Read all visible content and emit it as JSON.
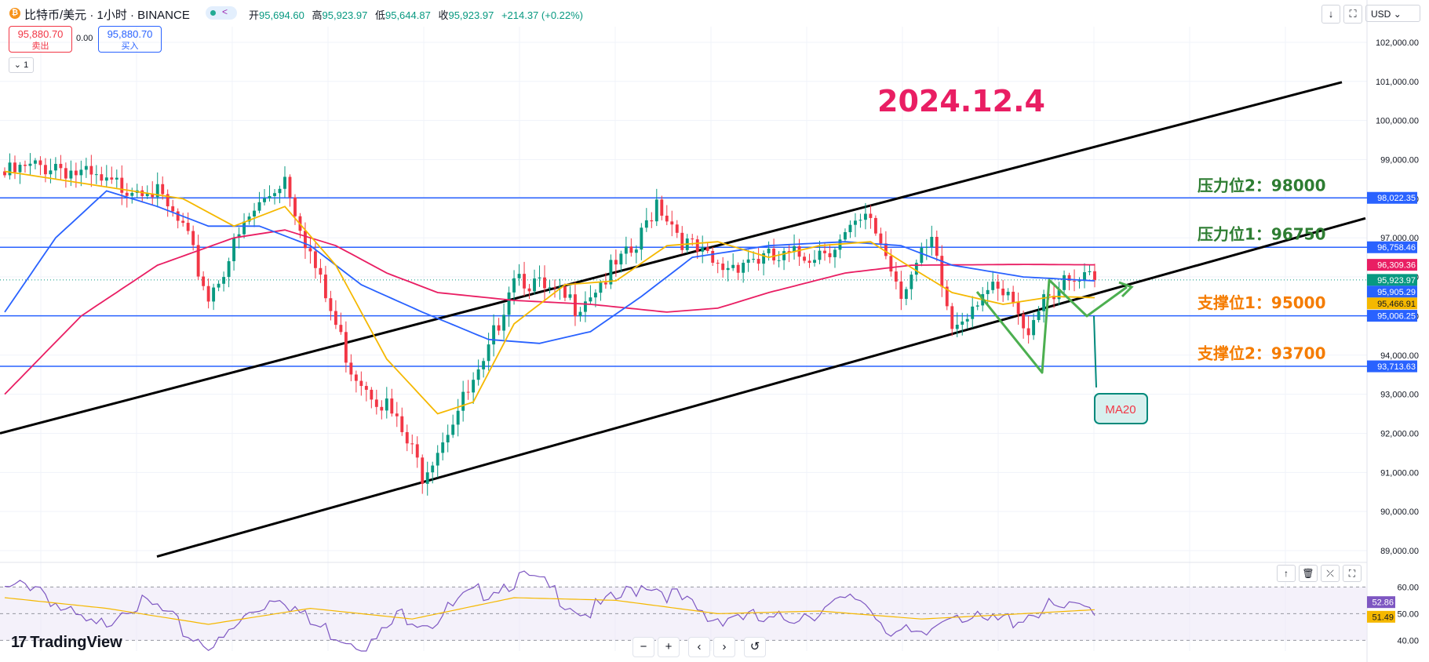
{
  "toolbar": {
    "symbol_icon": "bitcoin-icon",
    "symbol_icon_glyph": "₿",
    "symbol_title": "比特币/美元 · 1小时 · BINANCE",
    "ohlc": {
      "open_label": "开",
      "open": "95,694.60",
      "high_label": "高",
      "high": "95,923.97",
      "low_label": "低",
      "low": "95,644.87",
      "close_label": "收",
      "close": "95,923.97",
      "change": "+214.37 (+0.22%)"
    },
    "sell_price": "95,880.70",
    "sell_label": "卖出",
    "spread": "0.00",
    "buy_price": "95,880.70",
    "buy_label": "买入",
    "collapse_label": "1",
    "currency": "USD",
    "download_glyph": "↓",
    "fullscreen_glyph": "⛶",
    "camera_glyph": "⛶"
  },
  "rsi_controls": {
    "up": "↑",
    "delete": "🗑",
    "collapse": "⤫",
    "maximize": "⛶"
  },
  "nav": {
    "zoom_out": "−",
    "zoom_in": "+",
    "left": "‹",
    "right": "›",
    "reset": "↺"
  },
  "brand": "TradingView",
  "brand_mark": "17",
  "colors": {
    "up": "#089981",
    "down": "#f23645",
    "ma_short": "#f5b800",
    "ma_mid": "#2962ff",
    "ma_long": "#e91e63",
    "level_line": "#2962ff",
    "trend_line": "#000000",
    "annotation_green": "#4caf50",
    "resistance_text": "#2e7d32",
    "support_text": "#f57c00",
    "date_text": "#e91e63",
    "rsi": "#7e57c2",
    "rsi_ma": "#f5b800"
  },
  "chart_data": {
    "type": "candlestick",
    "title": "2024.12.4",
    "ylim": [
      88800,
      102400
    ],
    "y_ticks": [
      "102,000.00",
      "101,000.00",
      "100,000.00",
      "99,000.00",
      "98,000.00",
      "97,000.00",
      "96,000.00",
      "95,000.00",
      "94,000.00",
      "93,000.00",
      "92,000.00",
      "91,000.00",
      "90,000.00",
      "89,000.00"
    ],
    "price_labels": [
      {
        "value": 98022.35,
        "text": "98,022.35",
        "color": "#2962ff"
      },
      {
        "value": 96758.46,
        "text": "96,758.46",
        "color": "#2962ff"
      },
      {
        "value": 96309.36,
        "text": "96,309.36",
        "color": "#e91e63"
      },
      {
        "value": 95923.97,
        "text": "95,923.97",
        "color": "#089981"
      },
      {
        "value": 95905.29,
        "text": "95,905.29",
        "color": "#2962ff"
      },
      {
        "value": 95466.91,
        "text": "95,466.91",
        "color": "#f5b800"
      },
      {
        "value": 95006.25,
        "text": "95,006.25",
        "color": "#2962ff"
      },
      {
        "value": 93713.63,
        "text": "93,713.63",
        "color": "#2962ff"
      }
    ],
    "horizontal_levels": [
      98022.35,
      96758.46,
      95006.25,
      93713.63
    ],
    "last_price": 95923.97,
    "annotations": [
      {
        "text": "压力位2：98000",
        "value": 98000,
        "kind": "resistance"
      },
      {
        "text": "压力位1：96750",
        "value": 96750,
        "kind": "resistance"
      },
      {
        "text": "支撑位1：95000",
        "value": 95000,
        "kind": "support"
      },
      {
        "text": "支撑位2：93700",
        "value": 93700,
        "kind": "support"
      }
    ],
    "callout": "MA20",
    "channel": {
      "upper": [
        [
          0,
          92000
        ],
        [
          1710,
          100980
        ]
      ],
      "lower": [
        [
          200,
          88850
        ],
        [
          1740,
          97500
        ]
      ]
    },
    "anchors": [
      {
        "bar": 0,
        "price": 98600
      },
      {
        "bar": 10,
        "price": 98900
      },
      {
        "bar": 20,
        "price": 98300
      },
      {
        "bar": 28,
        "price": 98400
      },
      {
        "bar": 35,
        "price": 97200
      },
      {
        "bar": 40,
        "price": 95500
      },
      {
        "bar": 48,
        "price": 97500
      },
      {
        "bar": 55,
        "price": 98600
      },
      {
        "bar": 62,
        "price": 95800
      },
      {
        "bar": 68,
        "price": 93700
      },
      {
        "bar": 75,
        "price": 92700
      },
      {
        "bar": 82,
        "price": 91000
      },
      {
        "bar": 88,
        "price": 92400
      },
      {
        "bar": 94,
        "price": 93600
      },
      {
        "bar": 100,
        "price": 96200
      },
      {
        "bar": 106,
        "price": 95600
      },
      {
        "bar": 112,
        "price": 95300
      },
      {
        "bar": 118,
        "price": 96000
      },
      {
        "bar": 124,
        "price": 96700
      },
      {
        "bar": 128,
        "price": 98000
      },
      {
        "bar": 134,
        "price": 96800
      },
      {
        "bar": 140,
        "price": 96200
      },
      {
        "bar": 146,
        "price": 96500
      },
      {
        "bar": 152,
        "price": 96400
      },
      {
        "bar": 158,
        "price": 96600
      },
      {
        "bar": 164,
        "price": 96900
      },
      {
        "bar": 170,
        "price": 97500
      },
      {
        "bar": 176,
        "price": 95700
      },
      {
        "bar": 182,
        "price": 96800
      },
      {
        "bar": 186,
        "price": 94700
      },
      {
        "bar": 192,
        "price": 95700
      },
      {
        "bar": 198,
        "price": 95300
      },
      {
        "bar": 200,
        "price": 94500
      },
      {
        "bar": 204,
        "price": 95600
      },
      {
        "bar": 210,
        "price": 95800
      },
      {
        "bar": 214,
        "price": 95920
      }
    ],
    "ma_short_anchors": [
      [
        0,
        98700
      ],
      [
        20,
        98300
      ],
      [
        35,
        98000
      ],
      [
        45,
        97300
      ],
      [
        55,
        97800
      ],
      [
        65,
        96300
      ],
      [
        75,
        93900
      ],
      [
        85,
        92500
      ],
      [
        92,
        92800
      ],
      [
        100,
        94800
      ],
      [
        110,
        95800
      ],
      [
        120,
        95900
      ],
      [
        130,
        96800
      ],
      [
        140,
        96900
      ],
      [
        150,
        96500
      ],
      [
        160,
        96800
      ],
      [
        170,
        96900
      ],
      [
        176,
        96400
      ],
      [
        186,
        95600
      ],
      [
        196,
        95300
      ],
      [
        206,
        95500
      ],
      [
        214,
        95470
      ]
    ],
    "ma_mid_anchors": [
      [
        0,
        95100
      ],
      [
        10,
        97000
      ],
      [
        20,
        98200
      ],
      [
        30,
        97800
      ],
      [
        40,
        97300
      ],
      [
        50,
        97300
      ],
      [
        60,
        96800
      ],
      [
        70,
        95800
      ],
      [
        82,
        95100
      ],
      [
        95,
        94400
      ],
      [
        105,
        94300
      ],
      [
        115,
        94600
      ],
      [
        125,
        95500
      ],
      [
        135,
        96500
      ],
      [
        150,
        96800
      ],
      [
        165,
        96900
      ],
      [
        176,
        96800
      ],
      [
        186,
        96300
      ],
      [
        200,
        96000
      ],
      [
        214,
        95900
      ]
    ],
    "ma_long_anchors": [
      [
        0,
        93000
      ],
      [
        15,
        95000
      ],
      [
        30,
        96300
      ],
      [
        45,
        97000
      ],
      [
        55,
        97200
      ],
      [
        65,
        96800
      ],
      [
        75,
        96100
      ],
      [
        85,
        95600
      ],
      [
        100,
        95400
      ],
      [
        115,
        95300
      ],
      [
        130,
        95100
      ],
      [
        140,
        95200
      ],
      [
        150,
        95600
      ],
      [
        165,
        96100
      ],
      [
        178,
        96300
      ],
      [
        200,
        96320
      ],
      [
        214,
        96310
      ]
    ],
    "wave_drawing": [
      [
        1245,
        372
      ],
      [
        1328,
        475
      ],
      [
        1337,
        357
      ],
      [
        1385,
        403
      ],
      [
        1436,
        366
      ]
    ],
    "wave_arrow_tip": [
      1442,
      366
    ],
    "callout_line": [
      [
        1394,
        403
      ],
      [
        1397,
        494
      ]
    ],
    "rsi": {
      "levels": [
        60.0,
        50.0,
        40.0
      ],
      "tick_labels": [
        "60.00",
        "50.00",
        "40.00"
      ],
      "ylim": [
        36,
        66
      ],
      "rsi_value": "52.86",
      "rsi_ma_value": "51.49",
      "anchors": [
        [
          0,
          58
        ],
        [
          6,
          62
        ],
        [
          12,
          50
        ],
        [
          18,
          44
        ],
        [
          24,
          54
        ],
        [
          30,
          52
        ],
        [
          36,
          42
        ],
        [
          42,
          38
        ],
        [
          48,
          50
        ],
        [
          54,
          58
        ],
        [
          60,
          46
        ],
        [
          66,
          42
        ],
        [
          72,
          38
        ],
        [
          78,
          50
        ],
        [
          84,
          47
        ],
        [
          90,
          55
        ],
        [
          96,
          60
        ],
        [
          102,
          64
        ],
        [
          108,
          58
        ],
        [
          114,
          50
        ],
        [
          120,
          55
        ],
        [
          126,
          62
        ],
        [
          132,
          56
        ],
        [
          138,
          48
        ],
        [
          144,
          50
        ],
        [
          150,
          46
        ],
        [
          156,
          50
        ],
        [
          162,
          52
        ],
        [
          168,
          56
        ],
        [
          174,
          44
        ],
        [
          180,
          40
        ],
        [
          186,
          52
        ],
        [
          192,
          46
        ],
        [
          198,
          48
        ],
        [
          204,
          52
        ],
        [
          210,
          51
        ],
        [
          214,
          52.86
        ]
      ],
      "ma_anchors": [
        [
          0,
          56
        ],
        [
          20,
          52
        ],
        [
          40,
          46
        ],
        [
          60,
          52
        ],
        [
          80,
          48
        ],
        [
          100,
          56
        ],
        [
          120,
          55
        ],
        [
          140,
          50
        ],
        [
          160,
          51
        ],
        [
          180,
          48
        ],
        [
          200,
          50
        ],
        [
          214,
          51.49
        ]
      ]
    }
  }
}
